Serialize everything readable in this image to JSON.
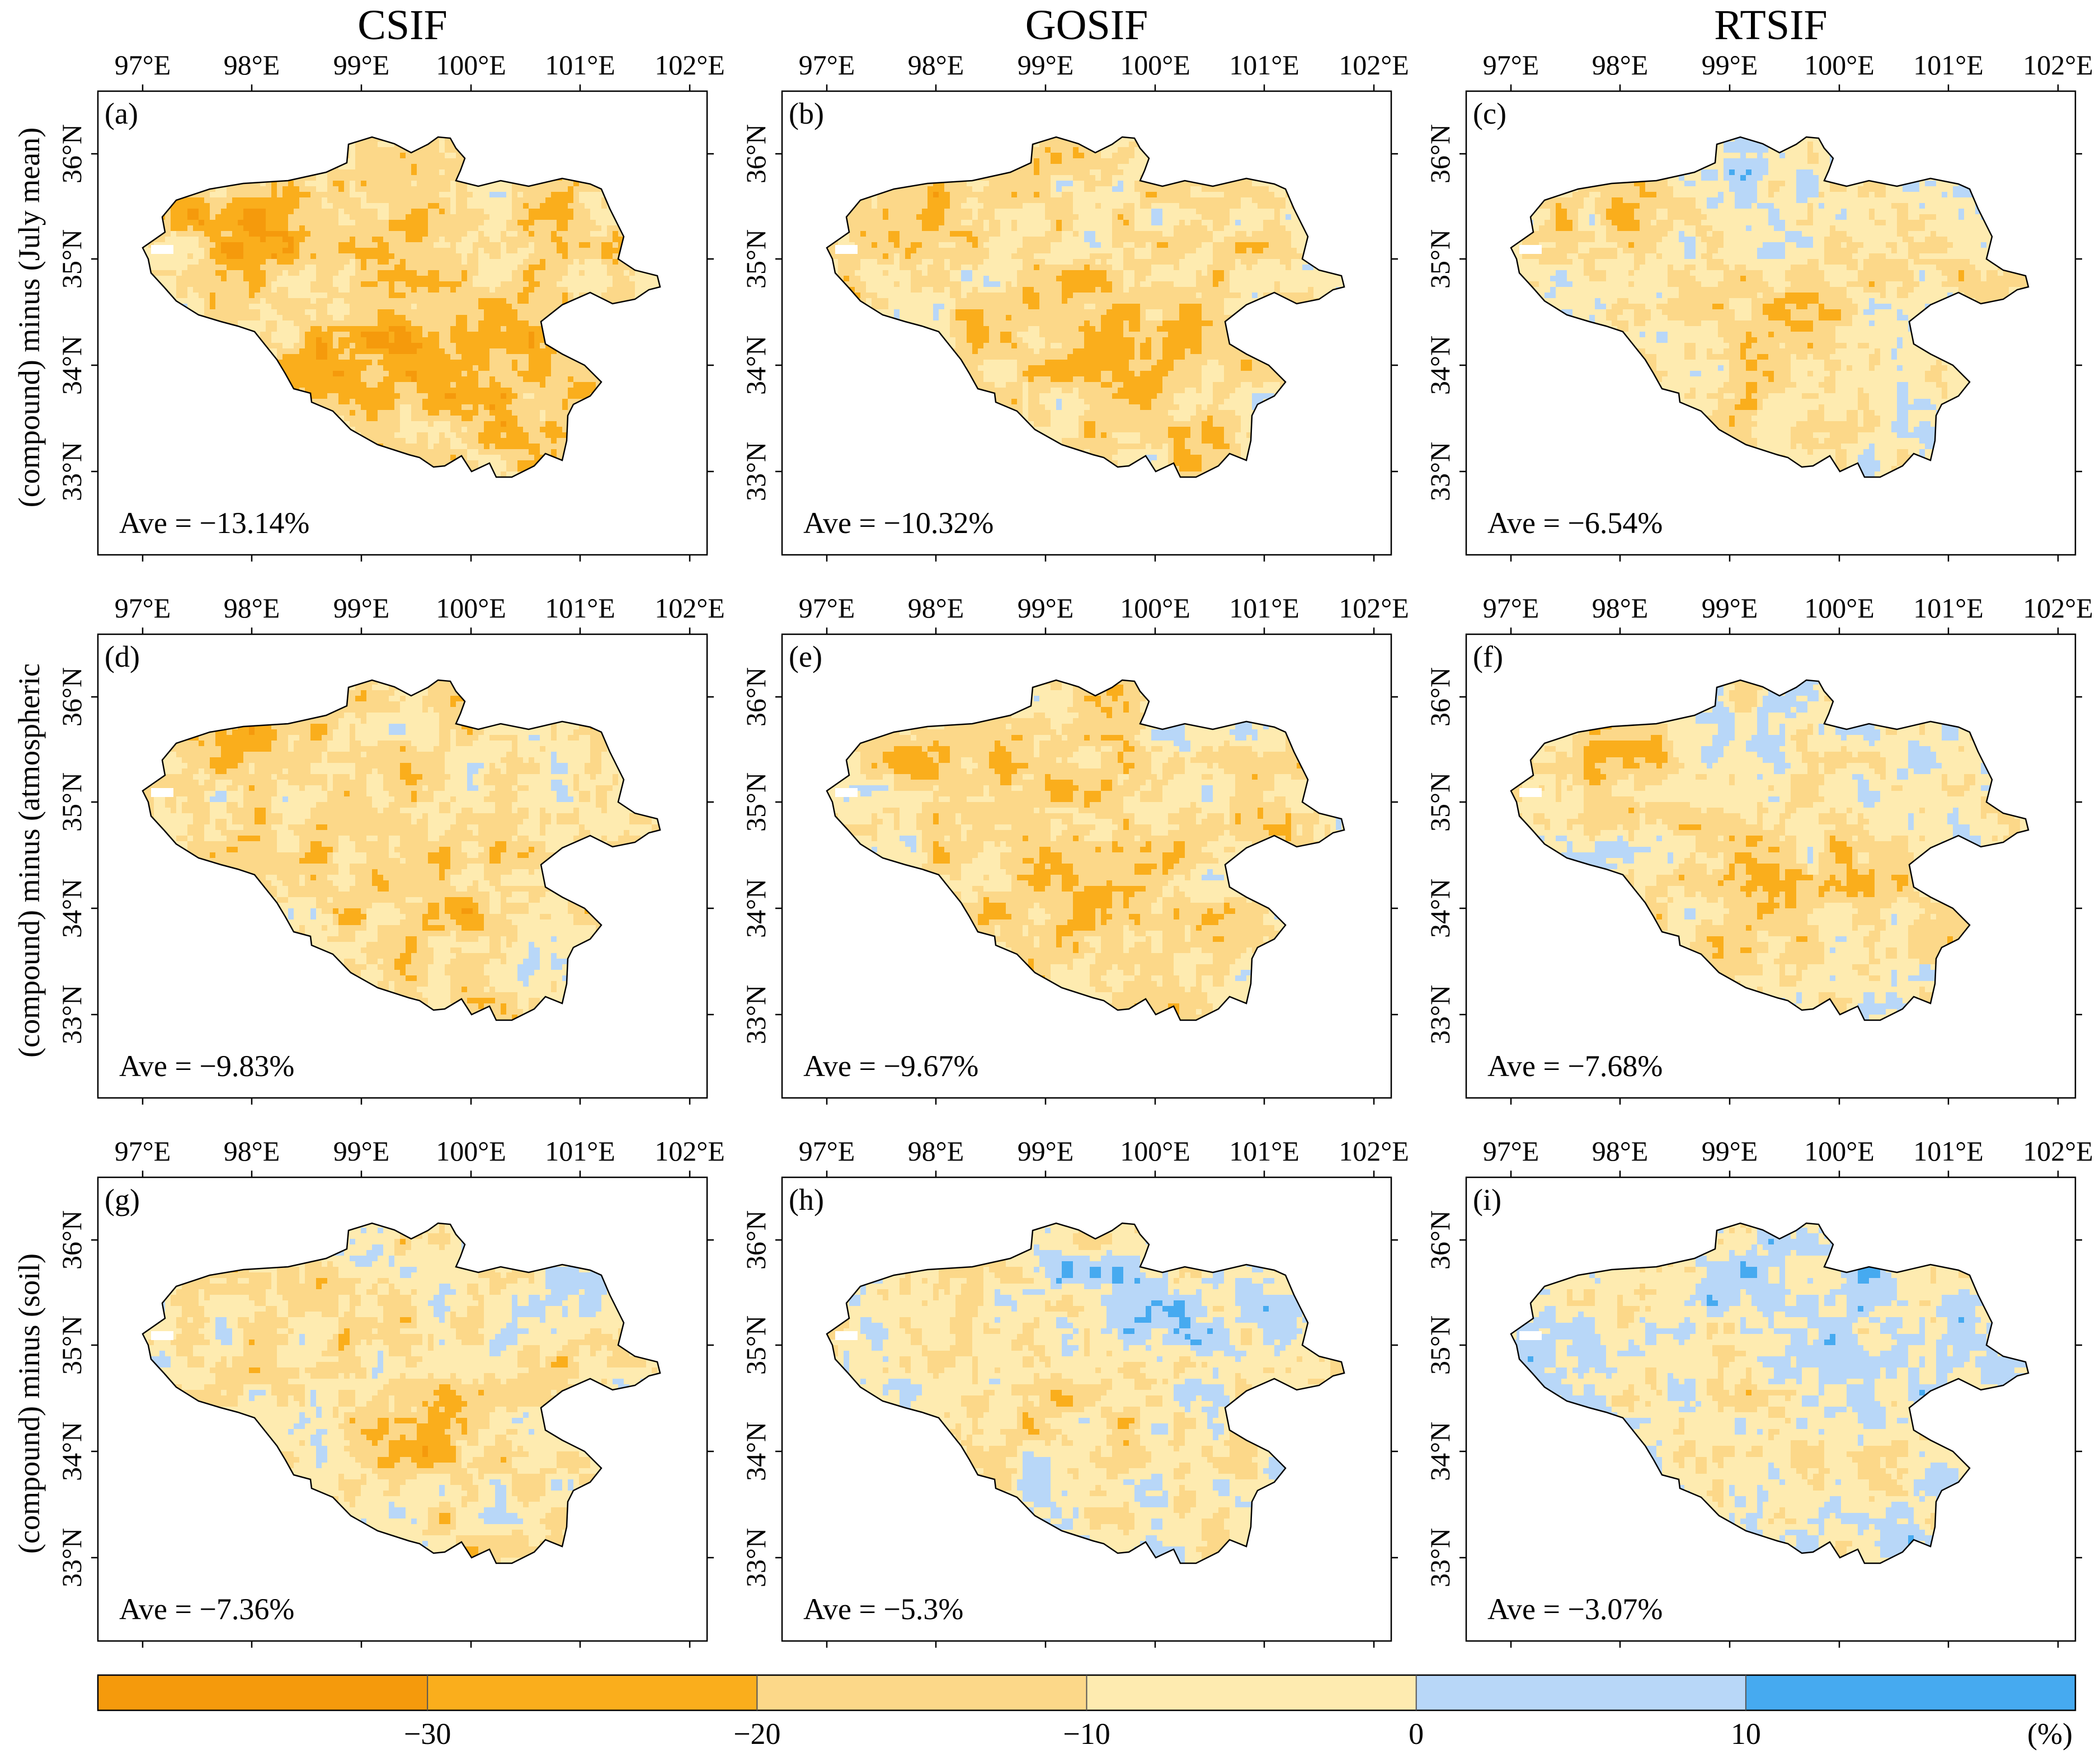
{
  "figure": {
    "column_titles": [
      "CSIF",
      "GOSIF",
      "RTSIF"
    ],
    "row_titles": [
      "(compound) minus (July mean)",
      "(compound) minus (atmospheric",
      "(compound) minus (soil)"
    ],
    "lon_ticks": [
      "97°E",
      "98°E",
      "99°E",
      "100°E",
      "101°E",
      "102°E"
    ],
    "lat_ticks": [
      "36°N",
      "35°N",
      "34°N",
      "33°N"
    ]
  },
  "panels": [
    {
      "id": "a",
      "label": "(a)",
      "dataset": "CSIF",
      "comparison": "(compound) minus (July mean)",
      "ave_value": -13.14,
      "ave_text": "Ave = −13.14%",
      "blue_share": 0.03,
      "strong_orange_share": 0.45
    },
    {
      "id": "b",
      "label": "(b)",
      "dataset": "GOSIF",
      "comparison": "(compound) minus (July mean)",
      "ave_value": -10.32,
      "ave_text": "Ave = −10.32%",
      "blue_share": 0.1,
      "strong_orange_share": 0.35
    },
    {
      "id": "c",
      "label": "(c)",
      "dataset": "RTSIF",
      "comparison": "(compound) minus (July mean)",
      "ave_value": -6.54,
      "ave_text": "Ave = −6.54%",
      "blue_share": 0.22,
      "strong_orange_share": 0.2
    },
    {
      "id": "d",
      "label": "(d)",
      "dataset": "CSIF",
      "comparison": "(compound) minus (atmospheric",
      "ave_value": -9.83,
      "ave_text": "Ave = −9.83%",
      "blue_share": 0.1,
      "strong_orange_share": 0.3
    },
    {
      "id": "e",
      "label": "(e)",
      "dataset": "GOSIF",
      "comparison": "(compound) minus (atmospheric",
      "ave_value": -9.67,
      "ave_text": "Ave = −9.67%",
      "blue_share": 0.12,
      "strong_orange_share": 0.3
    },
    {
      "id": "f",
      "label": "(f)",
      "dataset": "RTSIF",
      "comparison": "(compound) minus (atmospheric",
      "ave_value": -7.68,
      "ave_text": "Ave = −7.68%",
      "blue_share": 0.22,
      "strong_orange_share": 0.15
    },
    {
      "id": "g",
      "label": "(g)",
      "dataset": "CSIF",
      "comparison": "(compound) minus (soil)",
      "ave_value": -7.36,
      "ave_text": "Ave = −7.36%",
      "blue_share": 0.2,
      "strong_orange_share": 0.22
    },
    {
      "id": "h",
      "label": "(h)",
      "dataset": "GOSIF",
      "comparison": "(compound) minus (soil)",
      "ave_value": -5.3,
      "ave_text": "Ave = −5.3%",
      "blue_share": 0.28,
      "strong_orange_share": 0.2
    },
    {
      "id": "i",
      "label": "(i)",
      "dataset": "RTSIF",
      "comparison": "(compound) minus (soil)",
      "ave_value": -3.07,
      "ave_text": "Ave = −3.07%",
      "blue_share": 0.35,
      "strong_orange_share": 0.1
    }
  ],
  "colorbar": {
    "colors": [
      "#f59a0c",
      "#faae1c",
      "#fcd889",
      "#feebb0",
      "#b8d7f8",
      "#46aaf0"
    ],
    "tick_labels": [
      "−30",
      "−20",
      "−10",
      "0",
      "10"
    ],
    "unit": "(%)"
  }
}
